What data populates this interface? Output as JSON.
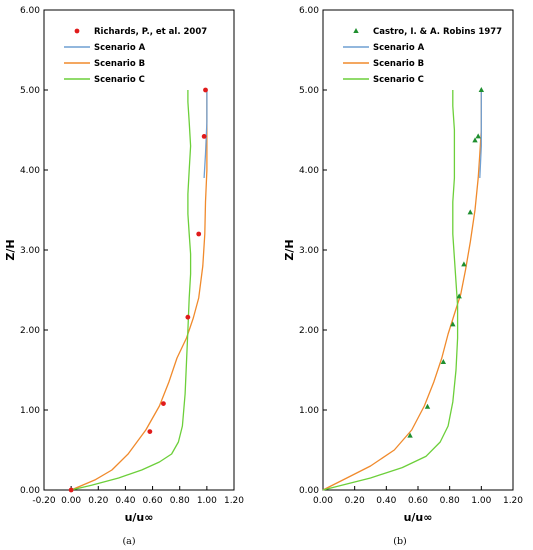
{
  "colors": {
    "scenario_a": "#6f9fd2",
    "scenario_b": "#f08a2c",
    "scenario_c": "#6ccf3a",
    "richards": "#e01b1b",
    "castro": "#1f8f2f"
  },
  "chart_data": [
    {
      "type": "line",
      "caption": "(a)",
      "xlabel": "u/u∞",
      "ylabel": "Z/H",
      "xlim": [
        -0.2,
        1.2
      ],
      "ylim": [
        0,
        6
      ],
      "xticks": [
        "-0.20",
        "0.00",
        "0.20",
        "0.40",
        "0.60",
        "0.80",
        "1.00",
        "1.20"
      ],
      "xtick_values": [
        -0.2,
        0,
        0.2,
        0.4,
        0.6,
        0.8,
        1.0,
        1.2
      ],
      "yticks": [
        "0.00",
        "1.00",
        "2.00",
        "3.00",
        "4.00",
        "5.00",
        "6.00"
      ],
      "ytick_values": [
        0,
        1,
        2,
        3,
        4,
        5,
        6
      ],
      "grid": false,
      "legend_position": "top-right",
      "legend": [
        "Richards, P., et al. 2007",
        "Scenario A",
        "Scenario B",
        "Scenario C"
      ],
      "points": {
        "name": "Richards, P., et al. 2007",
        "marker": "circle",
        "x": [
          0.0,
          0.58,
          0.68,
          0.86,
          0.94,
          0.98,
          0.99
        ],
        "y": [
          0.0,
          0.73,
          1.08,
          2.16,
          3.2,
          4.42,
          5.0
        ]
      },
      "series": [
        {
          "name": "Scenario B",
          "color_key": "scenario_b",
          "x": [
            0.0,
            0.07,
            0.18,
            0.3,
            0.42,
            0.55,
            0.65,
            0.72,
            0.78,
            0.85,
            0.9,
            0.94,
            0.97,
            0.985,
            0.99,
            1.0,
            1.0,
            1.0
          ],
          "y": [
            0.0,
            0.05,
            0.13,
            0.25,
            0.45,
            0.75,
            1.05,
            1.35,
            1.65,
            1.9,
            2.15,
            2.4,
            2.8,
            3.2,
            3.6,
            4.0,
            4.5,
            5.0
          ]
        },
        {
          "name": "Scenario A",
          "color_key": "scenario_a",
          "x": [
            0.98,
            0.99,
            1.0,
            1.0
          ],
          "y": [
            3.9,
            4.2,
            4.6,
            5.0
          ]
        },
        {
          "name": "Scenario C",
          "color_key": "scenario_c",
          "x": [
            0.0,
            0.15,
            0.35,
            0.52,
            0.65,
            0.74,
            0.79,
            0.82,
            0.84,
            0.85,
            0.86,
            0.87,
            0.88,
            0.88,
            0.87,
            0.86,
            0.86,
            0.87,
            0.88,
            0.87,
            0.86,
            0.86
          ],
          "y": [
            0.0,
            0.06,
            0.15,
            0.25,
            0.35,
            0.45,
            0.6,
            0.8,
            1.2,
            1.6,
            2.0,
            2.4,
            2.7,
            2.95,
            3.2,
            3.45,
            3.7,
            4.0,
            4.3,
            4.6,
            4.85,
            5.0
          ]
        }
      ]
    },
    {
      "type": "line",
      "caption": "(b)",
      "xlabel": "u/u∞",
      "ylabel": "Z/H",
      "xlim": [
        0,
        1.2
      ],
      "ylim": [
        0,
        6
      ],
      "xticks": [
        "0.00",
        "0.20",
        "0.40",
        "0.60",
        "0.80",
        "1.00",
        "1.20"
      ],
      "xtick_values": [
        0,
        0.2,
        0.4,
        0.6,
        0.8,
        1.0,
        1.2
      ],
      "yticks": [
        "0.00",
        "1.00",
        "2.00",
        "3.00",
        "4.00",
        "5.00",
        "6.00"
      ],
      "ytick_values": [
        0,
        1,
        2,
        3,
        4,
        5,
        6
      ],
      "grid": false,
      "legend_position": "top-right",
      "legend": [
        "Castro, I. & A. Robins 1977",
        "Scenario A",
        "Scenario B",
        "Scenario C"
      ],
      "points": {
        "name": "Castro, I. & A. Robins 1977",
        "marker": "triangle",
        "x": [
          0.55,
          0.66,
          0.76,
          0.82,
          0.86,
          0.89,
          0.93,
          0.96,
          0.98,
          1.0
        ],
        "y": [
          0.68,
          1.04,
          1.6,
          2.07,
          2.42,
          2.82,
          3.47,
          4.37,
          4.42,
          5.0
        ]
      },
      "series": [
        {
          "name": "Scenario B",
          "color_key": "scenario_b",
          "x": [
            0.0,
            0.05,
            0.15,
            0.3,
            0.45,
            0.56,
            0.64,
            0.7,
            0.75,
            0.79,
            0.83,
            0.87,
            0.9,
            0.93,
            0.96,
            0.98,
            0.99,
            1.0,
            1.0,
            1.0
          ],
          "y": [
            0.0,
            0.05,
            0.15,
            0.3,
            0.5,
            0.75,
            1.05,
            1.35,
            1.65,
            1.95,
            2.2,
            2.45,
            2.75,
            3.1,
            3.5,
            3.9,
            4.2,
            4.5,
            4.8,
            5.0
          ]
        },
        {
          "name": "Scenario A",
          "color_key": "scenario_a",
          "x": [
            0.99,
            1.0,
            1.0,
            1.0
          ],
          "y": [
            3.9,
            4.3,
            4.7,
            5.0
          ]
        },
        {
          "name": "Scenario C",
          "color_key": "scenario_c",
          "x": [
            0.0,
            0.1,
            0.3,
            0.5,
            0.65,
            0.74,
            0.79,
            0.82,
            0.84,
            0.85,
            0.85,
            0.84,
            0.83,
            0.82,
            0.82,
            0.83,
            0.83,
            0.83,
            0.82,
            0.82
          ],
          "y": [
            0.0,
            0.05,
            0.15,
            0.28,
            0.42,
            0.6,
            0.8,
            1.1,
            1.5,
            1.9,
            2.3,
            2.6,
            2.9,
            3.2,
            3.6,
            3.9,
            4.2,
            4.5,
            4.8,
            5.0
          ]
        }
      ]
    }
  ]
}
